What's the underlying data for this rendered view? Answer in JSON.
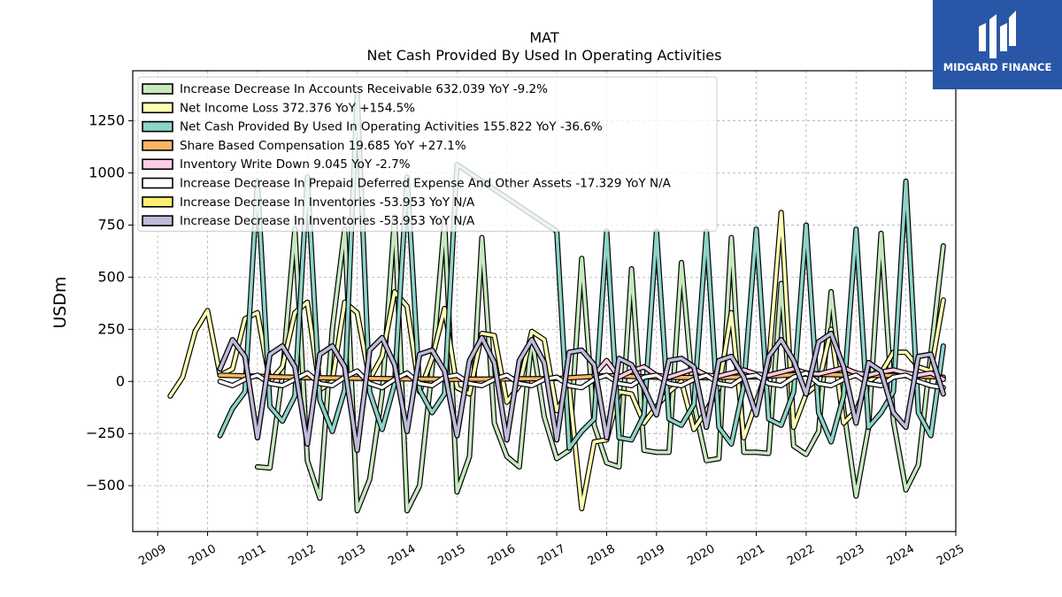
{
  "chart_data": {
    "type": "line",
    "title": "MAT",
    "subtitle": "Net Cash Provided By Used In Operating Activities",
    "ylabel": "USDm",
    "xlabel": "",
    "xlim": [
      2008.5,
      2025.0
    ],
    "ylim": [
      -720,
      1490
    ],
    "yticks": [
      -500,
      -250,
      0,
      250,
      500,
      750,
      1000,
      1250
    ],
    "ytick_labels": [
      "−500",
      "−250",
      "0",
      "250",
      "500",
      "750",
      "1000",
      "1250"
    ],
    "xticks": [
      2009,
      2010,
      2011,
      2012,
      2013,
      2014,
      2015,
      2016,
      2017,
      2018,
      2019,
      2020,
      2021,
      2022,
      2023,
      2024,
      2025
    ],
    "grid": true,
    "legend_position": "upper-left",
    "series": [
      {
        "name": "Increase Decrease In Accounts Receivable  632.039 YoY -9.2%",
        "color": "#c7e9c0",
        "x": [
          2011.0,
          2011.25,
          2011.5,
          2011.75,
          2012.0,
          2012.25,
          2012.5,
          2012.75,
          2013.0,
          2013.25,
          2013.5,
          2013.75,
          2014.0,
          2014.25,
          2014.5,
          2014.75,
          2015.0,
          2015.25,
          2015.5,
          2015.75,
          2016.0,
          2016.25,
          2016.5,
          2016.75,
          2017.0,
          2017.25,
          2017.5,
          2017.75,
          2018.0,
          2018.25,
          2018.5,
          2018.75,
          2019.0,
          2019.25,
          2019.5,
          2019.75,
          2020.0,
          2020.25,
          2020.5,
          2020.75,
          2021.0,
          2021.25,
          2021.5,
          2021.75,
          2022.0,
          2022.25,
          2022.5,
          2022.75,
          2023.0,
          2023.25,
          2023.5,
          2023.75,
          2024.0,
          2024.25,
          2024.5,
          2024.75
        ],
        "values": [
          -410,
          -415,
          30,
          730,
          -380,
          -560,
          250,
          730,
          -620,
          -470,
          -60,
          790,
          -620,
          -500,
          60,
          770,
          -530,
          -360,
          690,
          -200,
          -360,
          -410,
          210,
          -170,
          -370,
          -330,
          590,
          -210,
          -390,
          -410,
          540,
          -330,
          -340,
          -340,
          570,
          -110,
          -380,
          -370,
          690,
          -340,
          -340,
          -345,
          470,
          -310,
          -350,
          -240,
          430,
          -130,
          -550,
          -220,
          710,
          -190,
          -520,
          -400,
          130,
          650
        ]
      },
      {
        "name": "Net Income Loss  372.376 YoY +154.5%",
        "color": "#ffffb3",
        "x": [
          2009.25,
          2009.5,
          2009.75,
          2010.0,
          2010.25,
          2010.5,
          2010.75,
          2011.0,
          2011.25,
          2011.5,
          2011.75,
          2012.0,
          2012.25,
          2012.5,
          2012.75,
          2013.0,
          2013.25,
          2013.5,
          2013.75,
          2014.0,
          2014.25,
          2014.5,
          2014.75,
          2015.0,
          2015.25,
          2015.5,
          2015.75,
          2016.0,
          2016.25,
          2016.5,
          2016.75,
          2017.0,
          2017.25,
          2017.5,
          2017.75,
          2018.0,
          2018.25,
          2018.5,
          2018.75,
          2019.0,
          2019.25,
          2019.5,
          2019.75,
          2020.0,
          2020.25,
          2020.5,
          2020.75,
          2021.0,
          2021.25,
          2021.5,
          2021.75,
          2022.0,
          2022.25,
          2022.5,
          2022.75,
          2023.0,
          2023.25,
          2023.5,
          2023.75,
          2024.0,
          2024.25,
          2024.5,
          2024.75
        ],
        "values": [
          -70,
          20,
          240,
          340,
          30,
          60,
          300,
          330,
          0,
          70,
          330,
          380,
          -40,
          0,
          380,
          330,
          10,
          120,
          430,
          360,
          -50,
          110,
          350,
          -30,
          -60,
          230,
          220,
          -100,
          -20,
          240,
          200,
          -140,
          -30,
          -610,
          -290,
          -280,
          -50,
          -60,
          -200,
          -120,
          -50,
          0,
          -230,
          -140,
          -30,
          330,
          -270,
          -100,
          80,
          810,
          -220,
          -60,
          -10,
          250,
          -200,
          -140,
          0,
          40,
          140,
          140,
          70,
          50,
          390
        ]
      },
      {
        "name": "Net Cash Provided By Used In Operating Activities  155.822 YoY -36.6%",
        "color": "#8dd3c7",
        "x": [
          2010.25,
          2010.5,
          2010.75,
          2011.0,
          2011.25,
          2011.5,
          2011.75,
          2012.0,
          2012.25,
          2012.5,
          2012.75,
          2013.0,
          2013.25,
          2013.5,
          2013.75,
          2014.0,
          2014.25,
          2014.5,
          2014.75,
          2015.0,
          2015.25,
          2015.5,
          2015.75,
          2016.0,
          2016.25,
          2016.5,
          2016.75,
          2017.0,
          2017.25,
          2017.5,
          2017.75,
          2018.0,
          2018.25,
          2018.5,
          2018.75,
          2019.0,
          2019.25,
          2019.5,
          2019.75,
          2020.0,
          2020.25,
          2020.5,
          2020.75,
          2021.0,
          2021.25,
          2021.5,
          2021.75,
          2022.0,
          2022.25,
          2022.5,
          2022.75,
          2023.0,
          2023.25,
          2023.5,
          2023.75,
          2024.0,
          2024.25,
          2024.5,
          2024.75
        ],
        "values": [
          -260,
          -130,
          -50,
          960,
          -120,
          -190,
          -70,
          980,
          -90,
          -240,
          -40,
          1380,
          -50,
          -230,
          -10,
          980,
          -40,
          -150,
          -60,
          1040,
          1000,
          960,
          920,
          880,
          840,
          800,
          760,
          720,
          -320,
          -240,
          -180,
          720,
          -270,
          -280,
          -160,
          720,
          -180,
          -210,
          -110,
          720,
          -220,
          -300,
          -20,
          730,
          -180,
          -210,
          -50,
          750,
          -150,
          -290,
          -70,
          730,
          -220,
          -150,
          -50,
          960,
          -150,
          -260,
          170
        ]
      },
      {
        "name": "Share Based Compensation  19.685 YoY +27.1%",
        "color": "#fdb462",
        "x": [
          2010.25,
          2011.0,
          2012.0,
          2013.0,
          2014.0,
          2015.0,
          2016.0,
          2017.0,
          2018.0,
          2019.0,
          2020.0,
          2021.0,
          2022.0,
          2023.0,
          2024.0,
          2024.75
        ],
        "values": [
          30,
          25,
          18,
          15,
          12,
          10,
          12,
          14,
          28,
          20,
          18,
          22,
          35,
          30,
          28,
          20
        ]
      },
      {
        "name": "Inventory Write Down  9.045 YoY -2.7%",
        "color": "#fccde5",
        "x": [
          2017.75,
          2018.0,
          2018.25,
          2018.5,
          2018.75,
          2019.0,
          2019.25,
          2019.5,
          2019.75,
          2020.0,
          2020.25,
          2020.5,
          2020.75,
          2021.0,
          2021.25,
          2021.5,
          2021.75,
          2022.0,
          2022.25,
          2022.5,
          2022.75,
          2023.0,
          2023.25,
          2023.5,
          2023.75,
          2024.0,
          2024.25,
          2024.5,
          2024.75
        ],
        "values": [
          30,
          100,
          20,
          50,
          70,
          30,
          20,
          40,
          60,
          30,
          25,
          40,
          55,
          35,
          30,
          45,
          60,
          40,
          35,
          50,
          65,
          40,
          30,
          45,
          55,
          40,
          30,
          40,
          10
        ]
      },
      {
        "name": "Increase Decrease In Prepaid Deferred Expense And Other Assets  -17.329 YoY N/A",
        "color": "#ffffff",
        "x": [
          2010.25,
          2010.5,
          2010.75,
          2011.0,
          2011.25,
          2011.5,
          2011.75,
          2012.0,
          2012.25,
          2012.5,
          2012.75,
          2013.0,
          2013.25,
          2013.5,
          2013.75,
          2014.0,
          2014.25,
          2014.5,
          2014.75,
          2015.0,
          2015.25,
          2015.5,
          2015.75,
          2016.0,
          2016.25,
          2016.5,
          2016.75,
          2017.0,
          2017.25,
          2017.5,
          2017.75,
          2018.0,
          2018.25,
          2018.5,
          2018.75,
          2019.0,
          2019.25,
          2019.5,
          2019.75,
          2020.0,
          2020.25,
          2020.5,
          2020.75,
          2021.0,
          2021.25,
          2021.5,
          2021.75,
          2022.0,
          2022.25,
          2022.5,
          2022.75,
          2023.0,
          2023.25,
          2023.5,
          2023.75,
          2024.0,
          2024.25,
          2024.5,
          2024.75
        ],
        "values": [
          0,
          -20,
          10,
          30,
          -10,
          -20,
          10,
          40,
          -10,
          -20,
          20,
          50,
          -10,
          -30,
          10,
          40,
          -10,
          -20,
          20,
          30,
          -10,
          -20,
          10,
          30,
          -10,
          -20,
          10,
          20,
          -20,
          -30,
          10,
          30,
          -10,
          -20,
          20,
          30,
          -10,
          -20,
          10,
          30,
          -10,
          -20,
          20,
          30,
          -10,
          -20,
          20,
          40,
          -10,
          -20,
          10,
          30,
          -10,
          -20,
          20,
          30,
          0,
          -20,
          -30
        ]
      },
      {
        "name": "Increase Decrease In Inventories  -53.953 YoY N/A",
        "color": "#ffed6f",
        "x": [
          2010.25,
          2010.5,
          2010.75,
          2011.0,
          2011.25,
          2011.5,
          2011.75,
          2012.0,
          2012.25,
          2012.5,
          2012.75,
          2013.0,
          2013.25,
          2013.5,
          2013.75,
          2014.0,
          2014.25,
          2014.5,
          2014.75,
          2015.0,
          2015.25,
          2015.5,
          2015.75,
          2016.0,
          2016.25,
          2016.5,
          2016.75,
          2017.0,
          2017.25,
          2017.5,
          2017.75,
          2018.0,
          2018.25,
          2018.5,
          2018.75,
          2019.0,
          2019.25,
          2019.5,
          2019.75,
          2020.0,
          2020.25,
          2020.5,
          2020.75,
          2021.0,
          2021.25,
          2021.5,
          2021.75,
          2022.0,
          2022.25,
          2022.5,
          2022.75,
          2023.0,
          2023.25,
          2023.5,
          2023.75,
          2024.0,
          2024.25,
          2024.5,
          2024.75
        ],
        "values": [
          60,
          200,
          120,
          -270,
          130,
          170,
          70,
          -300,
          130,
          170,
          70,
          -330,
          150,
          210,
          80,
          -240,
          130,
          150,
          50,
          -260,
          100,
          210,
          90,
          -280,
          100,
          200,
          90,
          -280,
          140,
          150,
          80,
          -270,
          110,
          80,
          -30,
          -160,
          100,
          110,
          70,
          -220,
          100,
          120,
          20,
          -160,
          120,
          200,
          100,
          -60,
          190,
          230,
          70,
          -200,
          90,
          50,
          -150,
          -220,
          120,
          130,
          -60
        ]
      },
      {
        "name": "Increase Decrease In Inventories  -53.953 YoY N/A",
        "color": "#bebada",
        "x": [
          2010.25,
          2010.5,
          2010.75,
          2011.0,
          2011.25,
          2011.5,
          2011.75,
          2012.0,
          2012.25,
          2012.5,
          2012.75,
          2013.0,
          2013.25,
          2013.5,
          2013.75,
          2014.0,
          2014.25,
          2014.5,
          2014.75,
          2015.0,
          2015.25,
          2015.5,
          2015.75,
          2016.0,
          2016.25,
          2016.5,
          2016.75,
          2017.0,
          2017.25,
          2017.5,
          2017.75,
          2018.0,
          2018.25,
          2018.5,
          2018.75,
          2019.0,
          2019.25,
          2019.5,
          2019.75,
          2020.0,
          2020.25,
          2020.5,
          2020.75,
          2021.0,
          2021.25,
          2021.5,
          2021.75,
          2022.0,
          2022.25,
          2022.5,
          2022.75,
          2023.0,
          2023.25,
          2023.5,
          2023.75,
          2024.0,
          2024.25,
          2024.5,
          2024.75
        ],
        "values": [
          60,
          200,
          120,
          -270,
          130,
          170,
          70,
          -300,
          130,
          170,
          70,
          -330,
          150,
          210,
          80,
          -240,
          130,
          150,
          50,
          -260,
          100,
          210,
          90,
          -280,
          100,
          200,
          90,
          -280,
          140,
          150,
          80,
          -270,
          110,
          80,
          -30,
          -160,
          100,
          110,
          70,
          -220,
          100,
          120,
          20,
          -160,
          120,
          200,
          100,
          -60,
          190,
          230,
          70,
          -200,
          90,
          50,
          -150,
          -220,
          120,
          130,
          -60
        ]
      }
    ]
  },
  "logo": {
    "text": "MIDGARD FINANCE",
    "bg_color": "#2a56a8"
  }
}
